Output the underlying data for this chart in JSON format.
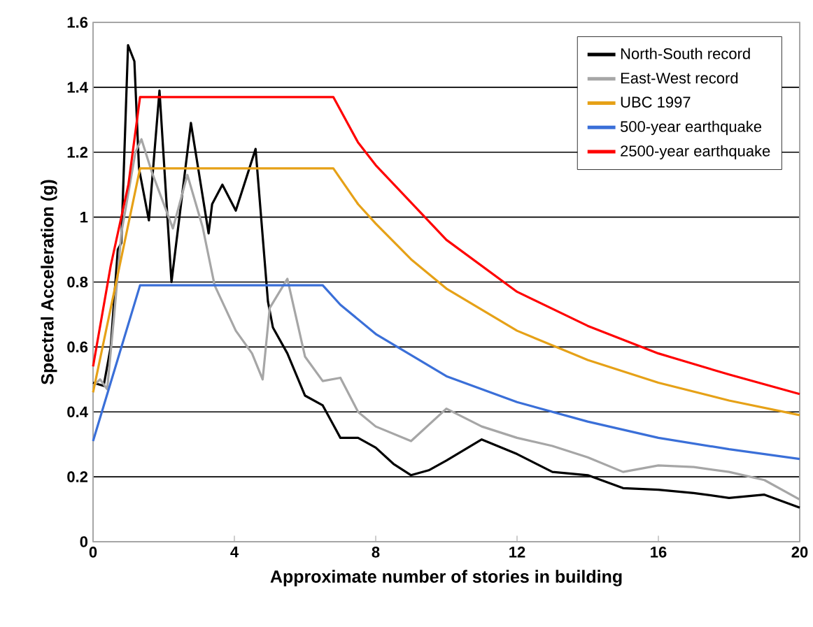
{
  "chart_data": {
    "type": "line",
    "xlabel": "Approximate number of stories in building",
    "ylabel": "Spectral Acceleration (g)",
    "xlim": [
      0,
      20
    ],
    "ylim": [
      0,
      1.6
    ],
    "xticks": [
      0,
      4,
      8,
      12,
      16,
      20
    ],
    "yticks": [
      0,
      0.2,
      0.4,
      0.6,
      0.8,
      1,
      1.2,
      1.4,
      1.6
    ],
    "grid": "y",
    "legend": "top right",
    "marker": "none",
    "line_style": "solid",
    "series": [
      {
        "name": "North-South record",
        "color": "#000000",
        "x": [
          0,
          0.3,
          0.5,
          0.7,
          0.8,
          0.99,
          1.17,
          1.3,
          1.58,
          1.88,
          2.22,
          2.77,
          3.27,
          3.37,
          3.66,
          4.04,
          4.6,
          4.95,
          5.09,
          5.5,
          6,
          6.5,
          6.8,
          7,
          7.5,
          8,
          8.5,
          9,
          9.5,
          10,
          11,
          12,
          13,
          14,
          15,
          16,
          17,
          18,
          19,
          20
        ],
        "values": [
          0.49,
          0.48,
          0.6,
          0.9,
          0.92,
          1.53,
          1.48,
          1.15,
          0.99,
          1.39,
          0.8,
          1.29,
          0.95,
          1.04,
          1.1,
          1.02,
          1.21,
          0.74,
          0.66,
          0.58,
          0.45,
          0.42,
          0.36,
          0.32,
          0.32,
          0.29,
          0.24,
          0.205,
          0.22,
          0.25,
          0.315,
          0.27,
          0.215,
          0.205,
          0.165,
          0.16,
          0.15,
          0.135,
          0.145,
          0.105
        ]
      },
      {
        "name": "East-West record",
        "color": "#a6a6a6",
        "x": [
          0,
          0.2,
          0.4,
          0.6,
          0.8,
          1.0,
          1.2,
          1.37,
          1.66,
          2.26,
          2.67,
          3.1,
          3.44,
          4.04,
          4.5,
          4.8,
          5.0,
          5.5,
          6,
          6.5,
          7,
          7.5,
          8,
          9,
          10,
          11,
          12,
          13,
          14,
          15,
          16,
          17,
          18,
          19,
          20
        ],
        "values": [
          0.48,
          0.5,
          0.47,
          0.7,
          0.95,
          null,
          1.2,
          1.24,
          1.14,
          0.965,
          1.13,
          0.97,
          0.79,
          0.65,
          0.58,
          0.5,
          0.72,
          0.81,
          0.57,
          0.495,
          0.505,
          0.4,
          0.355,
          0.31,
          0.41,
          0.355,
          0.32,
          0.295,
          0.26,
          0.215,
          0.235,
          0.23,
          0.215,
          0.19,
          0.13
        ]
      },
      {
        "name": "UBC 1997",
        "color": "#e6a117",
        "x": [
          0,
          1.33,
          6.8,
          7.5,
          8,
          9,
          10,
          12,
          14,
          16,
          18,
          20
        ],
        "values": [
          0.46,
          1.15,
          1.15,
          1.04,
          0.98,
          0.87,
          0.78,
          0.65,
          0.56,
          0.49,
          0.435,
          0.39
        ]
      },
      {
        "name": "500-year earthquake",
        "color": "#3a6fd8",
        "x": [
          0,
          1.33,
          6.5,
          7,
          8,
          10,
          12,
          14,
          16,
          18,
          20
        ],
        "values": [
          0.31,
          0.79,
          0.79,
          0.73,
          0.64,
          0.51,
          0.43,
          0.37,
          0.32,
          0.285,
          0.255
        ]
      },
      {
        "name": "2500-year earthquake",
        "color": "#ff0000",
        "x": [
          0,
          0.5,
          1.0,
          1.33,
          6.8,
          7.5,
          8,
          10,
          12,
          14,
          16,
          18,
          20
        ],
        "values": [
          0.54,
          0.85,
          1.1,
          1.37,
          1.37,
          1.23,
          1.16,
          0.93,
          0.77,
          0.665,
          0.58,
          0.515,
          0.455
        ]
      }
    ]
  }
}
